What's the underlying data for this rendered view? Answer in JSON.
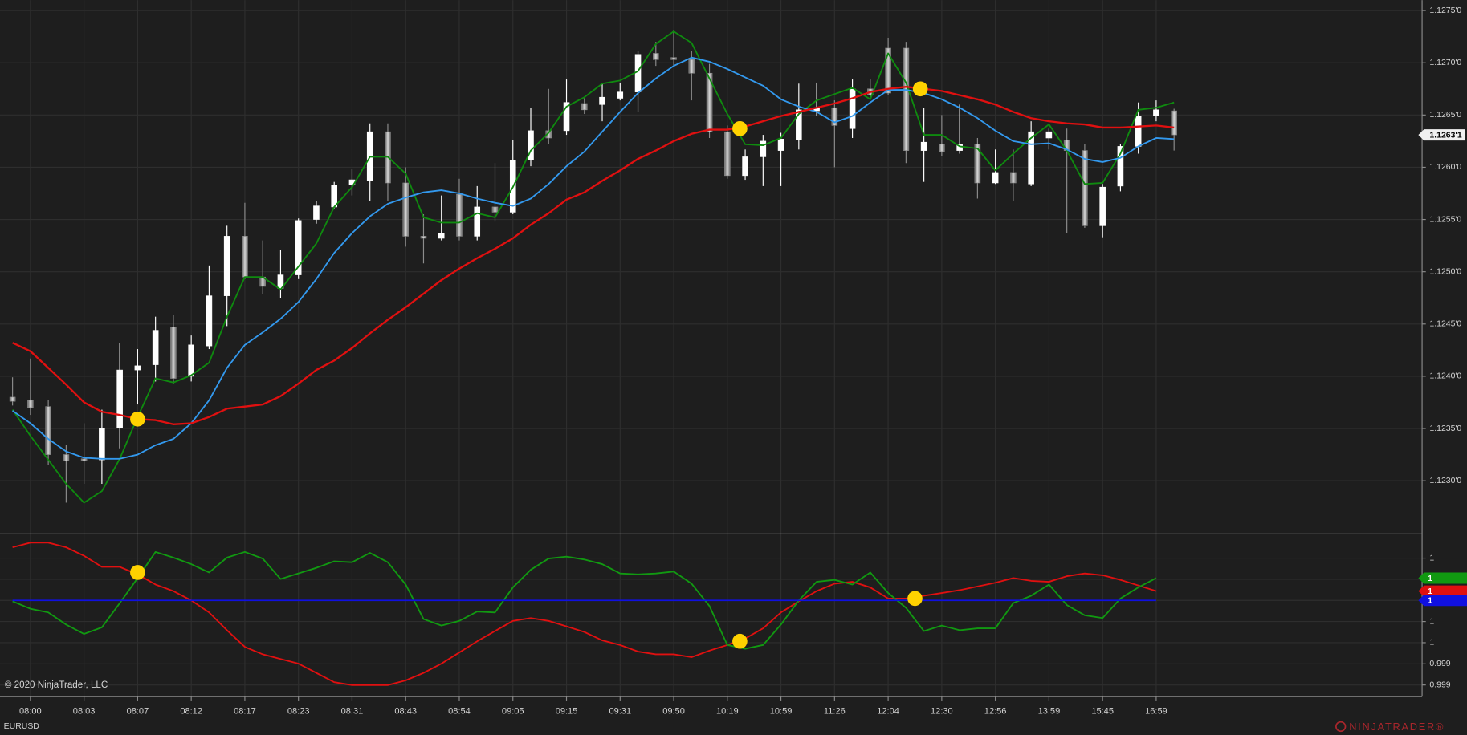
{
  "copyright": "© 2020 NinjaTrader, LLC",
  "instrument": "EURUSD",
  "brand": "NINJATRADER®",
  "chart_data": [
    {
      "type": "candlestick",
      "ylim": [
        1.1225,
        1.1276
      ],
      "yticks": [
        {
          "value": 1.123,
          "label": "1.1230'0"
        },
        {
          "value": 1.1235,
          "label": "1.1235'0"
        },
        {
          "value": 1.124,
          "label": "1.1240'0"
        },
        {
          "value": 1.1245,
          "label": "1.1245'0"
        },
        {
          "value": 1.125,
          "label": "1.1250'0"
        },
        {
          "value": 1.1255,
          "label": "1.1255'0"
        },
        {
          "value": 1.126,
          "label": "1.1260'0"
        },
        {
          "value": 1.1265,
          "label": "1.1265'0"
        },
        {
          "value": 1.127,
          "label": "1.1270'0"
        },
        {
          "value": 1.1275,
          "label": "1.1275'0"
        }
      ],
      "grid": true,
      "up_color": "#ffffff",
      "down_color": "#8c8c8c",
      "open": [
        1.1238,
        1.12377,
        1.12371,
        1.12325,
        1.12321,
        1.1232,
        1.12351,
        1.12406,
        1.12411,
        1.12447,
        1.124,
        1.12429,
        1.12477,
        1.12534,
        1.12495,
        1.12484,
        1.12497,
        1.1255,
        1.12562,
        1.12583,
        1.12587,
        1.12634,
        1.12585,
        1.12534,
        1.12532,
        1.12574,
        1.12534,
        1.12562,
        1.12557,
        1.12607,
        1.12635,
        1.12635,
        1.12661,
        1.1266,
        1.12666,
        1.12672,
        1.12709,
        1.12705,
        1.12703,
        1.1269,
        1.12634,
        1.12592,
        1.1261,
        1.12616,
        1.12626,
        1.12654,
        1.12657,
        1.12637,
        1.12675,
        1.12714,
        1.12714,
        1.12616,
        1.12622,
        1.12616,
        1.12622,
        1.12585,
        1.12595,
        1.12584,
        1.12628,
        1.12626,
        1.12616,
        1.12544,
        1.12582,
        1.1262,
        1.12649,
        1.12654
      ],
      "high": [
        1.12399,
        1.12417,
        1.12377,
        1.12334,
        1.12355,
        1.12368,
        1.12432,
        1.12426,
        1.12457,
        1.12459,
        1.12439,
        1.12506,
        1.12544,
        1.12566,
        1.1253,
        1.12521,
        1.12551,
        1.12568,
        1.12586,
        1.12598,
        1.12642,
        1.12642,
        1.126,
        1.12555,
        1.12573,
        1.12589,
        1.12582,
        1.12604,
        1.12626,
        1.12657,
        1.12675,
        1.12684,
        1.12666,
        1.1268,
        1.12681,
        1.12711,
        1.1272,
        1.12731,
        1.12711,
        1.12699,
        1.1264,
        1.12617,
        1.12631,
        1.12633,
        1.1268,
        1.12681,
        1.12664,
        1.12684,
        1.12684,
        1.12724,
        1.1272,
        1.12657,
        1.1265,
        1.1266,
        1.12628,
        1.12617,
        1.12617,
        1.12644,
        1.12637,
        1.12637,
        1.12622,
        1.12584,
        1.12622,
        1.12662,
        1.12664,
        1.12656
      ],
      "low": [
        1.12372,
        1.12363,
        1.12315,
        1.12279,
        1.12297,
        1.12297,
        1.12331,
        1.12373,
        1.12395,
        1.12393,
        1.12395,
        1.12426,
        1.12448,
        1.12493,
        1.12479,
        1.12475,
        1.12493,
        1.12546,
        1.1256,
        1.12573,
        1.12568,
        1.12568,
        1.12524,
        1.12508,
        1.1253,
        1.1253,
        1.1253,
        1.12548,
        1.12555,
        1.12601,
        1.12622,
        1.12631,
        1.12651,
        1.12644,
        1.12664,
        1.12653,
        1.12697,
        1.12697,
        1.12664,
        1.12628,
        1.12589,
        1.12588,
        1.12582,
        1.12582,
        1.12617,
        1.12649,
        1.126,
        1.12628,
        1.12666,
        1.12669,
        1.12604,
        1.12586,
        1.12611,
        1.12613,
        1.1257,
        1.12584,
        1.12568,
        1.12582,
        1.12617,
        1.12537,
        1.12542,
        1.12533,
        1.12577,
        1.12613,
        1.12644,
        1.12616
      ],
      "close": [
        1.12376,
        1.1237,
        1.12325,
        1.12319,
        1.12319,
        1.1235,
        1.12406,
        1.1241,
        1.12444,
        1.12398,
        1.1243,
        1.12477,
        1.12534,
        1.12495,
        1.12486,
        1.12497,
        1.12549,
        1.12563,
        1.12583,
        1.12588,
        1.12634,
        1.12585,
        1.12534,
        1.12532,
        1.12537,
        1.12534,
        1.12562,
        1.12557,
        1.12607,
        1.12635,
        1.12628,
        1.12662,
        1.12655,
        1.12667,
        1.12672,
        1.12708,
        1.12703,
        1.12703,
        1.1269,
        1.12634,
        1.12592,
        1.1261,
        1.12625,
        1.12627,
        1.12655,
        1.12657,
        1.1264,
        1.12675,
        1.12669,
        1.12671,
        1.12616,
        1.12624,
        1.12615,
        1.12622,
        1.12585,
        1.12595,
        1.12585,
        1.12634,
        1.12634,
        1.12616,
        1.12544,
        1.12581,
        1.1262,
        1.12649,
        1.12655,
        1.12631
      ],
      "series": [
        {
          "color": "#0f8a0f",
          "values": [
            1.12368,
            1.12343,
            1.1232,
            1.12297,
            1.12279,
            1.1229,
            1.12321,
            1.12361,
            1.12398,
            1.12394,
            1.12401,
            1.12413,
            1.12457,
            1.12495,
            1.12495,
            1.12483,
            1.12505,
            1.12527,
            1.12562,
            1.12581,
            1.1261,
            1.1261,
            1.12594,
            1.12552,
            1.12547,
            1.12547,
            1.12556,
            1.12552,
            1.12581,
            1.12616,
            1.12633,
            1.12658,
            1.12667,
            1.1268,
            1.12683,
            1.12692,
            1.12718,
            1.1273,
            1.12719,
            1.12685,
            1.12651,
            1.12622,
            1.12621,
            1.12628,
            1.12651,
            1.12664,
            1.1267,
            1.12676,
            1.12665,
            1.12709,
            1.12681,
            1.12631,
            1.12631,
            1.1262,
            1.12618,
            1.12597,
            1.12613,
            1.12628,
            1.12641,
            1.12616,
            1.12584,
            1.12585,
            1.12613,
            1.12655,
            1.12657,
            1.12662
          ]
        },
        {
          "color": "#3399ee",
          "values": [
            1.12367,
            1.12355,
            1.1234,
            1.12328,
            1.12322,
            1.12321,
            1.12321,
            1.12325,
            1.12334,
            1.1234,
            1.12355,
            1.12377,
            1.12408,
            1.1243,
            1.12442,
            1.12455,
            1.12471,
            1.12493,
            1.12518,
            1.12537,
            1.12553,
            1.12565,
            1.12571,
            1.12576,
            1.12578,
            1.12575,
            1.1257,
            1.12566,
            1.12563,
            1.1257,
            1.12584,
            1.12601,
            1.12615,
            1.12634,
            1.12653,
            1.12671,
            1.12685,
            1.12697,
            1.12705,
            1.12701,
            1.12694,
            1.12686,
            1.12678,
            1.12665,
            1.12658,
            1.12653,
            1.12643,
            1.12649,
            1.12662,
            1.12674,
            1.12674,
            1.12671,
            1.12665,
            1.12657,
            1.12647,
            1.12635,
            1.12625,
            1.12622,
            1.12623,
            1.12617,
            1.12608,
            1.12605,
            1.12609,
            1.1262,
            1.12628,
            1.12627
          ]
        },
        {
          "color": "#e01010",
          "values": [
            1.12432,
            1.12424,
            1.12408,
            1.12392,
            1.12375,
            1.12366,
            1.12363,
            1.12359,
            1.12358,
            1.12354,
            1.12355,
            1.12361,
            1.12369,
            1.12371,
            1.12373,
            1.12381,
            1.12393,
            1.12406,
            1.12415,
            1.12427,
            1.12441,
            1.12454,
            1.12466,
            1.12479,
            1.12492,
            1.12503,
            1.12513,
            1.12522,
            1.12532,
            1.12545,
            1.12556,
            1.12569,
            1.12576,
            1.12587,
            1.12597,
            1.12608,
            1.12616,
            1.12625,
            1.12632,
            1.12636,
            1.12636,
            1.12639,
            1.12644,
            1.12649,
            1.12653,
            1.12657,
            1.12661,
            1.12666,
            1.12672,
            1.12675,
            1.12677,
            1.12675,
            1.12673,
            1.12669,
            1.12665,
            1.1266,
            1.12653,
            1.12647,
            1.12644,
            1.12642,
            1.12641,
            1.12638,
            1.12638,
            1.12639,
            1.1264,
            1.12638
          ]
        }
      ],
      "signals": [
        {
          "x": 7,
          "value": 1.12359
        },
        {
          "x": 40.7,
          "value": 1.12637
        },
        {
          "x": 50.8,
          "value": 1.12675
        }
      ],
      "signal_color": "#ffd200",
      "last_price": {
        "value": 1.12631,
        "label": "1.1263'1"
      }
    },
    {
      "type": "line",
      "categories": [
        null,
        "08:00",
        null,
        null,
        "08:03",
        null,
        null,
        "08:07",
        null,
        null,
        "08:12",
        null,
        null,
        "08:17",
        null,
        null,
        "08:23",
        null,
        null,
        "08:31",
        null,
        null,
        "08:43",
        null,
        null,
        "08:54",
        null,
        null,
        "09:05",
        null,
        null,
        "09:15",
        null,
        null,
        "09:31",
        null,
        null,
        "09:50",
        null,
        null,
        "10:19",
        null,
        null,
        "10:59",
        null,
        null,
        "11:26",
        null,
        null,
        "12:04",
        null,
        null,
        "12:30",
        null,
        null,
        "12:56",
        null,
        null,
        "13:59",
        null,
        null,
        "15:45",
        null,
        null,
        "16:59",
        null
      ],
      "ylim": [
        0.99909,
        1.00062
      ],
      "yticks": [
        {
          "value": 1.0004,
          "label": "1"
        },
        {
          "value": 1.0002,
          "label": "1"
        },
        1,
        {
          "value": 0.9998,
          "label": "1"
        },
        {
          "value": 0.9996,
          "label": "1"
        },
        {
          "value": 0.9994,
          "label": "0.999"
        },
        {
          "value": 0.9992,
          "label": "0.999"
        }
      ],
      "grid": true,
      "series": [
        {
          "color": "#e01010",
          "last_label": "1",
          "values": [
            1.000502,
            1.000546,
            1.000546,
            1.000502,
            1.000422,
            1.000317,
            1.000317,
            1.000246,
            1.00015,
            1.000088,
            1,
            0.999886,
            0.999718,
            0.99956,
            0.99949,
            0.999446,
            0.999402,
            0.999314,
            0.999226,
            0.999199,
            0.999199,
            0.999199,
            0.999243,
            0.999314,
            0.999402,
            0.999507,
            0.999613,
            0.99971,
            0.999806,
            0.999833,
            0.999806,
            0.999754,
            0.999701,
            0.999622,
            0.999578,
            0.999516,
            0.99949,
            0.99949,
            0.999463,
            0.999525,
            0.999578,
            0.999639,
            0.999736,
            0.999886,
            0.999991,
            1.000088,
            1.000158,
            1.000176,
            1.000123,
            1.000018,
            1.000018,
            1.000044,
            1.00007,
            1.000097,
            1.000132,
            1.000167,
            1.000211,
            1.000185,
            1.000176,
            1.000229,
            1.000255,
            1.000238,
            1.000194,
            1.000141,
            1.000088,
            null
          ]
        },
        {
          "color": "#119911",
          "last_label": "1",
          "values": [
            0.999991,
            0.999921,
            0.999886,
            0.999771,
            0.999683,
            0.999745,
            0.999974,
            1.000211,
            1.000458,
            1.000405,
            1.000343,
            1.000264,
            1.000405,
            1.000458,
            1.000396,
            1.000202,
            1.000255,
            1.000308,
            1.00037,
            1.000361,
            1.000449,
            1.000361,
            1.00015,
            0.999824,
            0.999762,
            0.999806,
            0.999894,
            0.999886,
            1.000123,
            1.00029,
            1.000396,
            1.000414,
            1.000387,
            1.000343,
            1.000255,
            1.000246,
            1.000255,
            1.000273,
            1.000158,
            0.999947,
            0.999578,
            0.999542,
            0.999578,
            0.999771,
            1,
            1.000176,
            1.000194,
            1.00015,
            1.000264,
            1.00007,
            0.99993,
            0.99971,
            0.999762,
            0.999718,
            0.999736,
            0.999736,
            0.999974,
            1.000044,
            1.00015,
            0.999956,
            0.999859,
            0.999833,
            1.000018,
            1.000123,
            1.000211,
            null
          ]
        },
        {
          "color": "#1010e0",
          "last_label": "1",
          "values": [
            1,
            1,
            1,
            1,
            1,
            1,
            1,
            1,
            1,
            1,
            1,
            1,
            1,
            1,
            1,
            1,
            1,
            1,
            1,
            1,
            1,
            1,
            1,
            1,
            1,
            1,
            1,
            1,
            1,
            1,
            1,
            1,
            1,
            1,
            1,
            1,
            1,
            1,
            1,
            1,
            1,
            1,
            1,
            1,
            1,
            1,
            1,
            1,
            1,
            1,
            1,
            1,
            1,
            1,
            1,
            1,
            1,
            1,
            1,
            1,
            1,
            1,
            1,
            1,
            1,
            null
          ]
        }
      ],
      "signals": [
        {
          "x": 7,
          "value": 1.000264
        },
        {
          "x": 40.7,
          "value": 0.999613
        },
        {
          "x": 50.5,
          "value": 1.000018
        }
      ],
      "signal_color": "#ffd200"
    }
  ]
}
